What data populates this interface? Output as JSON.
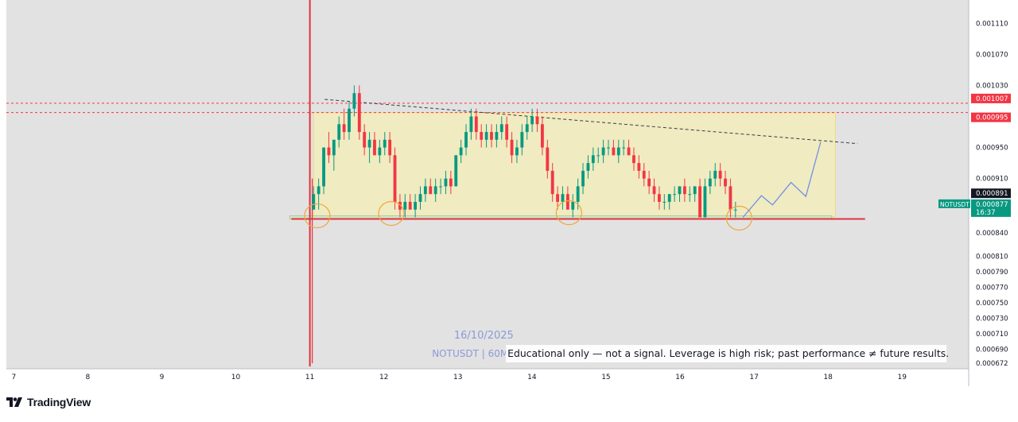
{
  "chart_data": {
    "type": "candlestick",
    "symbol_label": "NOTUSDT | 60M",
    "date_label": "16/10/2025",
    "disclaimer": "Educational only — not a signal. Leverage is high risk; past performance ≠ future results.",
    "x_ticks": [
      "7",
      "8",
      "9",
      "10",
      "11",
      "12",
      "13",
      "14",
      "15",
      "16",
      "17",
      "18",
      "19"
    ],
    "x_range": [
      6.9,
      19.9
    ],
    "ylim": [
      0.000665,
      0.00114
    ],
    "y_ticks": [
      "0.001110",
      "0.001070",
      "0.001030",
      "0.000950",
      "0.000910",
      "0.000840",
      "0.000810",
      "0.000790",
      "0.000770",
      "0.000750",
      "0.000730",
      "0.000710",
      "0.000690",
      "0.000672"
    ],
    "price_labels": [
      {
        "text": "0.001007",
        "value": 0.001007,
        "color": "#f23645"
      },
      {
        "text": "0.000995",
        "value": 0.000995,
        "color": "#f23645"
      },
      {
        "text": "0.000891",
        "value": 0.000891,
        "color": "#131722"
      }
    ],
    "current_price": {
      "symbol": "NOTUSDT",
      "price": "0.000877",
      "countdown": "16:37",
      "value": 0.000877
    },
    "resistance_levels": [
      0.001007,
      0.000995
    ],
    "support_level": 0.000858,
    "range_box": {
      "x_start": 11.05,
      "x_end": 18.1,
      "y_top": 0.000995,
      "y_bottom": 0.000861
    },
    "trendline": [
      [
        11.2,
        0.001012
      ],
      [
        18.4,
        0.000955
      ]
    ],
    "wick_spike": {
      "x": 11.0,
      "high": 0.00114,
      "low": 0.000668
    },
    "circles": [
      [
        11.1,
        0.000862
      ],
      [
        12.1,
        0.000865
      ],
      [
        14.5,
        0.000866
      ],
      [
        16.8,
        0.000859
      ]
    ],
    "projection": [
      [
        16.85,
        0.00086
      ],
      [
        17.1,
        0.000888
      ],
      [
        17.25,
        0.000876
      ],
      [
        17.5,
        0.000905
      ],
      [
        17.7,
        0.000887
      ],
      [
        17.9,
        0.000957
      ]
    ],
    "candles_ohlc": [
      [
        0.00087,
        0.0009,
        0.00088,
        0.00089
      ],
      [
        0.00089,
        0.00091,
        0.00087,
        0.0009
      ],
      [
        0.0009,
        0.00095,
        0.00089,
        0.00095
      ],
      [
        0.00095,
        0.00097,
        0.00093,
        0.00094
      ],
      [
        0.00094,
        0.00096,
        0.00092,
        0.00096
      ],
      [
        0.00096,
        0.00099,
        0.00095,
        0.00098
      ],
      [
        0.00098,
        0.001,
        0.00096,
        0.00097
      ],
      [
        0.00097,
        0.00101,
        0.00096,
        0.001
      ],
      [
        0.001,
        0.00103,
        0.00099,
        0.00102
      ],
      [
        0.00102,
        0.00103,
        0.00096,
        0.00097
      ],
      [
        0.00097,
        0.00098,
        0.00094,
        0.00095
      ],
      [
        0.00095,
        0.00097,
        0.00093,
        0.00096
      ],
      [
        0.00096,
        0.00097,
        0.00094,
        0.00094
      ],
      [
        0.00094,
        0.00096,
        0.00093,
        0.00095
      ],
      [
        0.00095,
        0.00097,
        0.00094,
        0.00096
      ],
      [
        0.00096,
        0.00097,
        0.00093,
        0.00094
      ],
      [
        0.00094,
        0.00095,
        0.00087,
        0.00088
      ],
      [
        0.00088,
        0.00089,
        0.00086,
        0.00087
      ],
      [
        0.00087,
        0.00089,
        0.00086,
        0.00088
      ],
      [
        0.00088,
        0.00089,
        0.00087,
        0.00087
      ],
      [
        0.00087,
        0.00089,
        0.00086,
        0.00088
      ],
      [
        0.00088,
        0.0009,
        0.00087,
        0.00089
      ],
      [
        0.00089,
        0.00091,
        0.00088,
        0.0009
      ],
      [
        0.0009,
        0.00091,
        0.00089,
        0.00089
      ],
      [
        0.00089,
        0.00091,
        0.00088,
        0.0009
      ],
      [
        0.0009,
        0.00091,
        0.00089,
        0.0009
      ],
      [
        0.0009,
        0.00092,
        0.00089,
        0.00091
      ],
      [
        0.00091,
        0.00092,
        0.00089,
        0.0009
      ],
      [
        0.0009,
        0.00094,
        0.0009,
        0.00094
      ],
      [
        0.00094,
        0.00096,
        0.00093,
        0.00095
      ],
      [
        0.00095,
        0.00098,
        0.00094,
        0.00097
      ],
      [
        0.00097,
        0.001,
        0.00096,
        0.00099
      ],
      [
        0.00099,
        0.001,
        0.00096,
        0.00097
      ],
      [
        0.00097,
        0.00098,
        0.00095,
        0.00096
      ],
      [
        0.00096,
        0.00098,
        0.00095,
        0.00097
      ],
      [
        0.00097,
        0.00098,
        0.00095,
        0.00096
      ],
      [
        0.00096,
        0.00098,
        0.00095,
        0.00097
      ],
      [
        0.00097,
        0.00099,
        0.00096,
        0.00098
      ],
      [
        0.00098,
        0.00099,
        0.00095,
        0.00096
      ],
      [
        0.00096,
        0.00097,
        0.00093,
        0.00094
      ],
      [
        0.00094,
        0.00096,
        0.00093,
        0.00095
      ],
      [
        0.00095,
        0.00098,
        0.00094,
        0.00097
      ],
      [
        0.00097,
        0.00099,
        0.00096,
        0.00098
      ],
      [
        0.00098,
        0.001,
        0.00097,
        0.00099
      ],
      [
        0.00099,
        0.001,
        0.00097,
        0.00098
      ],
      [
        0.00098,
        0.00099,
        0.00094,
        0.00095
      ],
      [
        0.00095,
        0.00096,
        0.00091,
        0.00092
      ],
      [
        0.00092,
        0.00093,
        0.00088,
        0.00089
      ],
      [
        0.00089,
        0.0009,
        0.00087,
        0.00088
      ],
      [
        0.00088,
        0.0009,
        0.00087,
        0.00089
      ],
      [
        0.00089,
        0.0009,
        0.00087,
        0.00087
      ],
      [
        0.00087,
        0.00089,
        0.00086,
        0.00088
      ],
      [
        0.00088,
        0.00091,
        0.00087,
        0.0009
      ],
      [
        0.0009,
        0.00093,
        0.00089,
        0.00092
      ],
      [
        0.00092,
        0.00094,
        0.00091,
        0.00093
      ],
      [
        0.00093,
        0.00095,
        0.00092,
        0.00094
      ],
      [
        0.00094,
        0.00095,
        0.00093,
        0.00094
      ],
      [
        0.00094,
        0.00096,
        0.00093,
        0.00095
      ],
      [
        0.00095,
        0.00096,
        0.00094,
        0.00095
      ],
      [
        0.00095,
        0.00096,
        0.00094,
        0.00094
      ],
      [
        0.00094,
        0.00096,
        0.00093,
        0.00095
      ],
      [
        0.00095,
        0.00096,
        0.00094,
        0.00095
      ],
      [
        0.00095,
        0.00096,
        0.00094,
        0.00094
      ],
      [
        0.00094,
        0.00095,
        0.00092,
        0.00093
      ],
      [
        0.00093,
        0.00094,
        0.00091,
        0.00092
      ],
      [
        0.00092,
        0.00093,
        0.0009,
        0.00091
      ],
      [
        0.00091,
        0.00092,
        0.00089,
        0.0009
      ],
      [
        0.0009,
        0.00091,
        0.00088,
        0.00089
      ],
      [
        0.00089,
        0.0009,
        0.00087,
        0.00088
      ],
      [
        0.00088,
        0.00089,
        0.00087,
        0.00088
      ],
      [
        0.00088,
        0.00089,
        0.00087,
        0.00089
      ],
      [
        0.00089,
        0.0009,
        0.00088,
        0.00089
      ],
      [
        0.00089,
        0.0009,
        0.00088,
        0.0009
      ],
      [
        0.0009,
        0.00091,
        0.00088,
        0.00089
      ],
      [
        0.00089,
        0.0009,
        0.00088,
        0.00089
      ],
      [
        0.00089,
        0.0009,
        0.00088,
        0.0009
      ],
      [
        0.0009,
        0.00091,
        0.00086,
        0.00086
      ],
      [
        0.00086,
        0.00091,
        0.00086,
        0.0009
      ],
      [
        0.0009,
        0.00092,
        0.00089,
        0.00091
      ],
      [
        0.00091,
        0.00093,
        0.0009,
        0.00092
      ],
      [
        0.00092,
        0.00093,
        0.0009,
        0.00091
      ],
      [
        0.00091,
        0.00092,
        0.00089,
        0.0009
      ],
      [
        0.0009,
        0.00091,
        0.00086,
        0.00087
      ],
      [
        0.00087,
        0.00088,
        0.00086,
        0.00087
      ]
    ],
    "colors": {
      "up": "#089981",
      "down": "#f23645",
      "background": "#e2e2e2",
      "box_fill": "#f4eeb4",
      "box_stroke": "#e8dd88",
      "circle": "#f0a63c",
      "projection": "#6f8fe8",
      "watermark": "#8c9ad8",
      "label_bg": "#089981"
    }
  },
  "brand": {
    "name": "TradingView"
  }
}
